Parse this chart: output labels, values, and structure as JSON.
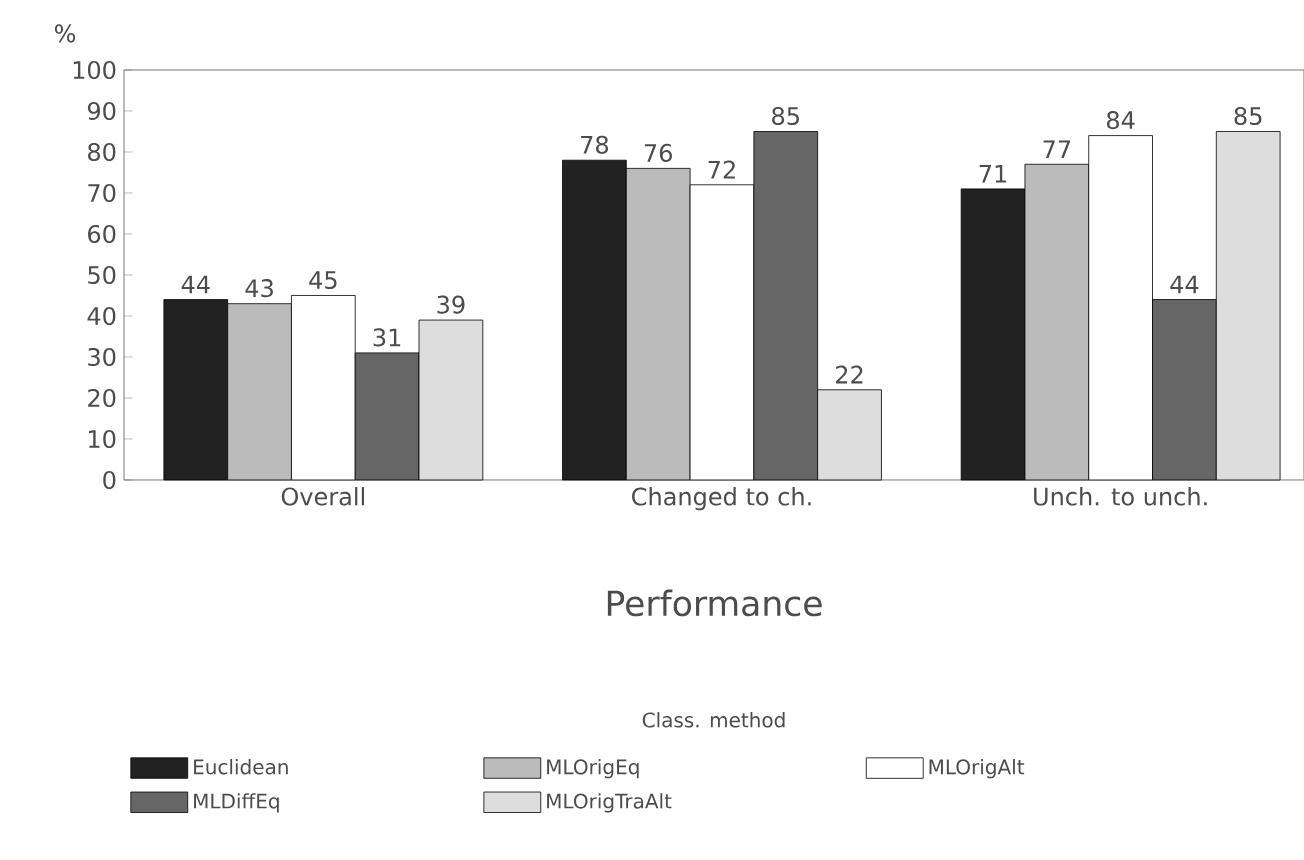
{
  "chart_data": {
    "type": "bar",
    "categories": [
      "Overall",
      "Changed to ch.",
      "Unch. to unch."
    ],
    "xlabel": "Performance",
    "ylabel": "%",
    "legend_title": "Class. method",
    "ylim": [
      0,
      100
    ],
    "yticks": [
      0,
      10,
      20,
      30,
      40,
      50,
      60,
      70,
      80,
      90,
      100
    ],
    "data_labels": true,
    "legend": "bottom",
    "series": [
      {
        "name": "Euclidean",
        "color": "#222222",
        "values": [
          44,
          78,
          71
        ]
      },
      {
        "name": "MLOrigEq",
        "color": "#bbbbbb",
        "values": [
          43,
          76,
          77
        ]
      },
      {
        "name": "MLOrigAlt",
        "color": "#ffffff",
        "values": [
          45,
          72,
          84
        ]
      },
      {
        "name": "MLDiffEq",
        "color": "#666666",
        "values": [
          31,
          85,
          44
        ]
      },
      {
        "name": "MLOrigTraAlt",
        "color": "#dddddd",
        "values": [
          39,
          22,
          85
        ]
      }
    ]
  }
}
